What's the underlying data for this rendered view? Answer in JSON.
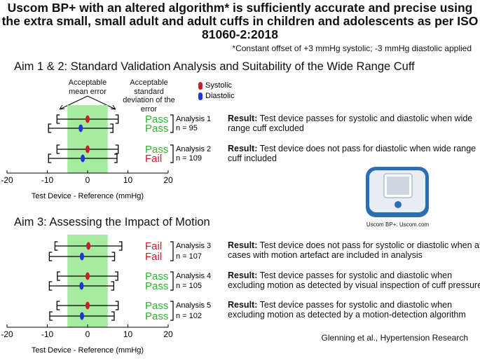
{
  "title": "Uscom BP+ with an altered algorithm* is sufficiently accurate and precise using the extra small, small adult and adult cuffs in children and adolescents as per ISO 81060-2:2018",
  "note": "*Constant offset of +3 mmHg systolic; -3 mmHg diastolic applied",
  "device_caption": "Uscom BP+: Uscom.com",
  "footer": "Glenning et al., Hypertension Research",
  "chart_data": [
    {
      "type": "forest",
      "title": "Aim 1 & 2: Standard Validation Analysis and Suitability of the Wide Range Cuff",
      "xlabel": "Test Device - Reference (mmHg)",
      "xlim": [
        -20,
        20
      ],
      "xticks": [
        -20,
        -10,
        0,
        10,
        20
      ],
      "band": [
        -5,
        5
      ],
      "band_color": "#a6eb9f",
      "annotations": [
        "Acceptable mean error",
        "Acceptable standard deviation of the error"
      ],
      "series": [
        {
          "name": "Systolic",
          "color": "#c8202a",
          "values": [
            0,
            0
          ],
          "errors": [
            7.6,
            7.6
          ]
        },
        {
          "name": "Diastolic",
          "color": "#1f35d8",
          "values": [
            -1.7,
            -1.2
          ],
          "errors": [
            8.0,
            8.5
          ]
        }
      ],
      "rows": [
        {
          "analysis": "Analysis 1",
          "n": "n = 95",
          "verdicts": [
            {
              "text": "Pass",
              "color": "#2cb52c"
            },
            {
              "text": "Pass",
              "color": "#2cb52c"
            }
          ],
          "result_label": "Result:",
          "result": "Test device passes for systolic and diastolic when wide range cuff excluded"
        },
        {
          "analysis": "Analysis 2",
          "n": "n = 109",
          "verdicts": [
            {
              "text": "Pass",
              "color": "#2cb52c"
            },
            {
              "text": "Fail",
              "color": "#c0202a"
            }
          ],
          "result_label": "Result:",
          "result": "Test device does not pass for diastolic when wide range cuff included"
        }
      ]
    },
    {
      "type": "forest",
      "title": "Aim 3: Assessing the Impact of Motion",
      "xlabel": "Test Device - Reference (mmHg)",
      "xlim": [
        -20,
        20
      ],
      "xticks": [
        -20,
        -10,
        0,
        10,
        20
      ],
      "band": [
        -5,
        5
      ],
      "band_color": "#a6eb9f",
      "series": [
        {
          "color": "#c8202a",
          "values": [
            0.2,
            0,
            0
          ],
          "errors": [
            8.3,
            7.5,
            7.6
          ]
        },
        {
          "color": "#1f35d8",
          "values": [
            -1.4,
            -1.5,
            -1.4
          ],
          "errors": [
            8.1,
            8.0,
            8.0
          ]
        }
      ],
      "rows": [
        {
          "analysis": "Analysis 3",
          "n": "n = 107",
          "verdicts": [
            {
              "text": "Fail",
              "color": "#c0202a"
            },
            {
              "text": "Fail",
              "color": "#c0202a"
            }
          ],
          "result_label": "Result:",
          "result": "Test device does not pass for systolic or diastolic when all cases with motion artefact are included in analysis"
        },
        {
          "analysis": "Analysis 4",
          "n": "n = 105",
          "verdicts": [
            {
              "text": "Pass",
              "color": "#2cb52c"
            },
            {
              "text": "Pass",
              "color": "#2cb52c"
            }
          ],
          "result_label": "Result:",
          "result": "Test device passes for systolic and diastolic when excluding motion as detected by visual inspection of cuff pressure"
        },
        {
          "analysis": "Analysis 5",
          "n": "n = 102",
          "verdicts": [
            {
              "text": "Pass",
              "color": "#2cb52c"
            },
            {
              "text": "Pass",
              "color": "#2cb52c"
            }
          ],
          "result_label": "Result:",
          "result": "Test device passes for systolic and diastolic when excluding motion as detected by a motion-detection algorithm"
        }
      ]
    }
  ]
}
